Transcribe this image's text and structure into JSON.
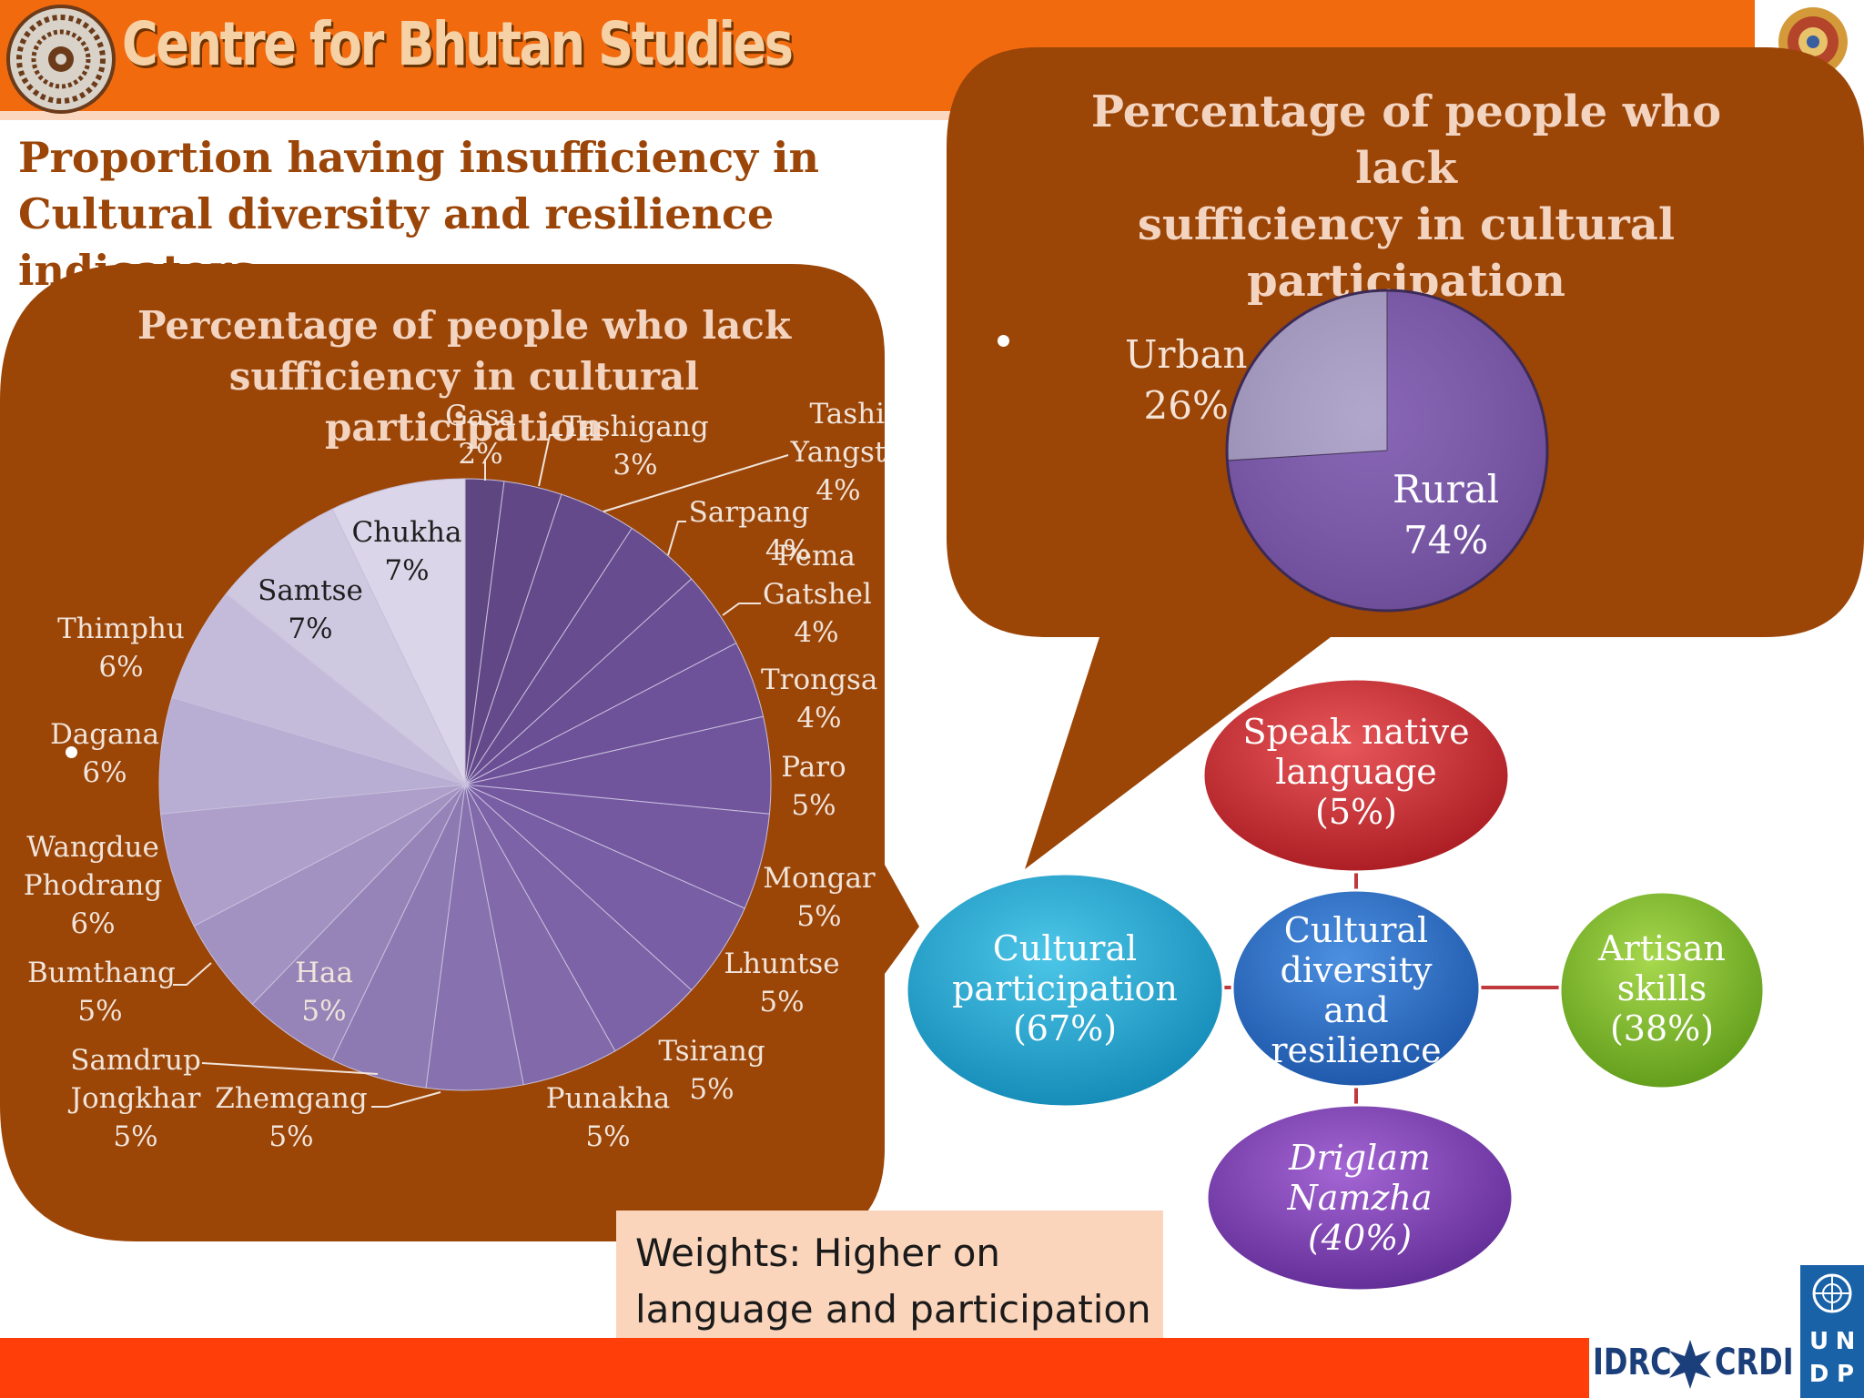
{
  "header": {
    "org_name": "Centre for Bhutan Studies",
    "heading_line1": "Proportion having insufficiency in",
    "heading_line2": "Cultural diversity and resilience indicators"
  },
  "colors": {
    "banner": "#f26a0e",
    "panel_brown": "#9b4507",
    "heading_text": "#9b4508",
    "bottom_bar": "#ff3e0a"
  },
  "left_chart": {
    "title_line1": "Percentage of people who lack",
    "title_line2": "sufficiency in cultural participation"
  },
  "right_chart": {
    "title_line1": "Percentage of people who lack",
    "title_line2": "sufficiency in cultural",
    "title_line3": "participation"
  },
  "chart_data": [
    {
      "type": "pie",
      "title": "Percentage of people who lack sufficiency in cultural participation",
      "unit": "%",
      "slices": [
        {
          "name": "Gasa",
          "value": 2,
          "color": "#5e4681"
        },
        {
          "name": "Tashigang",
          "value": 3,
          "color": "#614785"
        },
        {
          "name": "Tashi Yangst",
          "value": 4,
          "color": "#644a8a"
        },
        {
          "name": "Sarpang",
          "value": 4,
          "color": "#674c8f"
        },
        {
          "name": "Pema Gatshel",
          "value": 4,
          "color": "#6a4f94"
        },
        {
          "name": "Trongsa",
          "value": 4,
          "color": "#6d5199"
        },
        {
          "name": "Paro",
          "value": 5,
          "color": "#70559d"
        },
        {
          "name": "Mongar",
          "value": 5,
          "color": "#7459a1"
        },
        {
          "name": "Lhuntse",
          "value": 5,
          "color": "#785ea4"
        },
        {
          "name": "Tsirang",
          "value": 5,
          "color": "#7c63a7"
        },
        {
          "name": "Punakha",
          "value": 5,
          "color": "#8169aa"
        },
        {
          "name": "Zhemgang",
          "value": 5,
          "color": "#8771ae"
        },
        {
          "name": "Samdrup Jongkhar",
          "value": 5,
          "color": "#8e7ab3"
        },
        {
          "name": "Haa",
          "value": 5,
          "color": "#9684b9"
        },
        {
          "name": "Bumthang",
          "value": 5,
          "color": "#a192c2"
        },
        {
          "name": "Wangdue Phodrang",
          "value": 6,
          "color": "#ad9fca"
        },
        {
          "name": "Dagana",
          "value": 6,
          "color": "#b8add2"
        },
        {
          "name": "Thimphu",
          "value": 6,
          "color": "#c4bbda"
        },
        {
          "name": "Samtse",
          "value": 7,
          "color": "#cfc8e1"
        },
        {
          "name": "Chukha",
          "value": 7,
          "color": "#dad5e8"
        }
      ]
    },
    {
      "type": "pie",
      "title": "Percentage of people who lack sufficiency in cultural participation",
      "unit": "%",
      "slices": [
        {
          "name": "Rural",
          "value": 74,
          "color": "#7a55ad"
        },
        {
          "name": "Urban",
          "value": 26,
          "color": "#a89cc6"
        }
      ]
    }
  ],
  "left_labels": {
    "gasa": {
      "name": "Gasa",
      "pct": "2%"
    },
    "tashigang": {
      "name": "Tashigang",
      "pct": "3%"
    },
    "tashiyangst": {
      "name1": "Tashi",
      "name2": "Yangst",
      "pct": "4%"
    },
    "sarpang": {
      "name": "Sarpang",
      "pct": "4%"
    },
    "pema": {
      "name1": "Pema",
      "name2": "Gatshel",
      "pct": "4%"
    },
    "trongsa": {
      "name": "Trongsa",
      "pct": "4%"
    },
    "paro": {
      "name": "Paro",
      "pct": "5%"
    },
    "mongar": {
      "name": "Mongar",
      "pct": "5%"
    },
    "lhuntse": {
      "name": "Lhuntse",
      "pct": "5%"
    },
    "tsirang": {
      "name": "Tsirang",
      "pct": "5%"
    },
    "punakha": {
      "name": "Punakha",
      "pct": "5%"
    },
    "zhemgang": {
      "name": "Zhemgang",
      "pct": "5%"
    },
    "samdrup": {
      "name1": "Samdrup",
      "name2": "Jongkhar",
      "pct": "5%"
    },
    "haa": {
      "name": "Haa",
      "pct": "5%"
    },
    "bumthang": {
      "name": "Bumthang",
      "pct": "5%"
    },
    "wangdue": {
      "name1": "Wangdue",
      "name2": "Phodrang",
      "pct": "6%"
    },
    "dagana": {
      "name": "Dagana",
      "pct": "6%"
    },
    "thimphu": {
      "name": "Thimphu",
      "pct": "6%"
    },
    "samtse": {
      "name": "Samtse",
      "pct": "7%"
    },
    "chukha": {
      "name": "Chukha",
      "pct": "7%"
    }
  },
  "right_labels": {
    "urban": {
      "name": "Urban",
      "pct": "26%"
    },
    "rural": {
      "name": "Rural",
      "pct": "74%"
    }
  },
  "diagram": {
    "center": {
      "line1": "Cultural",
      "line2": "diversity",
      "line3": "and",
      "line4": "resilience",
      "color": "#2a6fc4"
    },
    "top": {
      "line1": "Speak native",
      "line2": "language",
      "line3": "(5%)",
      "color": "#c9262b"
    },
    "left": {
      "line1": "Cultural",
      "line2": "participation",
      "line3": "(67%)",
      "color": "#1ba6d2"
    },
    "right": {
      "line1": "Artisan",
      "line2": "skills",
      "line3": "(38%)",
      "color": "#84bd2c"
    },
    "bottom": {
      "line1": "Driglam",
      "line2": "Namzha",
      "line3": "(40%)",
      "color": "#7e3fb1"
    }
  },
  "weights": {
    "line1": "Weights:  Higher on",
    "line2": "language and participation"
  },
  "footer": {
    "partner_logo_text": "IDRC",
    "partner_logo_text2": "CRDI",
    "undp_letters": [
      "U",
      "N",
      "D",
      "P"
    ]
  }
}
